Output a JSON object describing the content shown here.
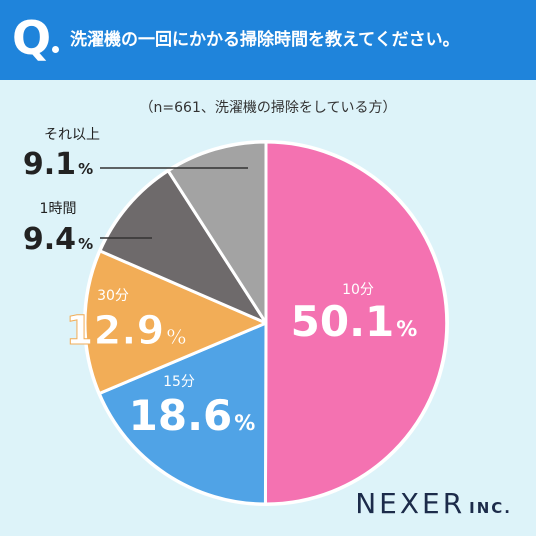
{
  "header": {
    "q_label": "Q",
    "question": "洗濯機の一回にかかる掃除時間を教えてください。"
  },
  "subtitle": "（n=661、洗濯機の掃除をしている方）",
  "brand": {
    "name": "NEXER",
    "suffix": "INC."
  },
  "colors": {
    "header_bg": "#1f84db",
    "background": "#ddf3f9",
    "slice_10": "#f472b1",
    "slice_15": "#50a3e6",
    "slice_30": "#f2ad57",
    "slice_1h": "#6e6a6b",
    "slice_more": "#a3a3a3"
  },
  "chart_data": {
    "type": "pie",
    "title": "洗濯機の一回にかかる掃除時間を教えてください。",
    "subtitle": "（n=661、洗濯機の掃除をしている方）",
    "unit": "%",
    "slices": [
      {
        "label": "10分",
        "value": 50.1,
        "color": "#f472b1"
      },
      {
        "label": "15分",
        "value": 18.6,
        "color": "#50a3e6"
      },
      {
        "label": "30分",
        "value": 12.9,
        "color": "#f2ad57"
      },
      {
        "label": "1時間",
        "value": 9.4,
        "color": "#6e6a6b"
      },
      {
        "label": "それ以上",
        "value": 9.1,
        "color": "#a3a3a3"
      }
    ]
  }
}
